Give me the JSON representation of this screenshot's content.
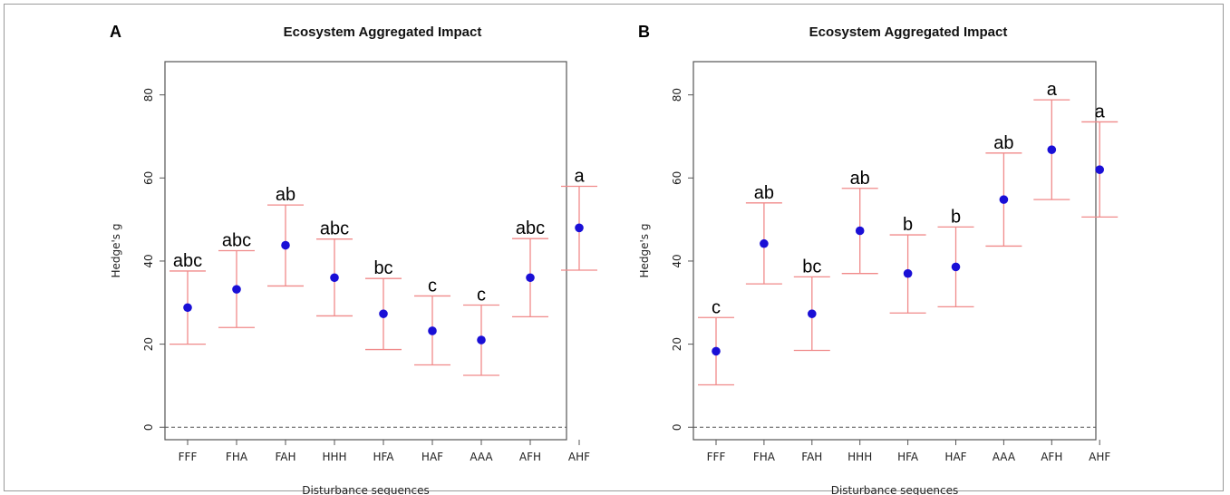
{
  "chart_data": [
    {
      "type": "scatter",
      "panel": "A",
      "title": "Ecosystem Aggregated Impact",
      "xlabel": "Disturbance sequences",
      "ylabel": "Hedge's g",
      "ylim": [
        -3,
        88
      ],
      "yticks": [
        0,
        20,
        40,
        60,
        80
      ],
      "grid": false,
      "reference_line": 0,
      "categories": [
        "FFF",
        "FHA",
        "FAH",
        "HHH",
        "HFA",
        "HAF",
        "AAA",
        "AFH",
        "AHF"
      ],
      "values": [
        28.8,
        33.2,
        43.8,
        36.0,
        27.3,
        23.2,
        21.0,
        36.0,
        48.0
      ],
      "lower": [
        20.0,
        24.0,
        34.0,
        26.8,
        18.7,
        15.0,
        12.5,
        26.6,
        37.8
      ],
      "upper": [
        37.6,
        42.5,
        53.5,
        45.3,
        35.8,
        31.6,
        29.4,
        45.4,
        58.0
      ],
      "letters": [
        "abc",
        "abc",
        "ab",
        "abc",
        "bc",
        "c",
        "c",
        "abc",
        "a"
      ],
      "colors": {
        "point": "#1a0fd6",
        "errorbar": "#f08a8a",
        "axis": "#555555",
        "refline": "#555555"
      }
    },
    {
      "type": "scatter",
      "panel": "B",
      "title": "Ecosystem Aggregated Impact",
      "xlabel": "Disturbance sequences",
      "ylabel": "Hedge's g",
      "ylim": [
        -3,
        88
      ],
      "yticks": [
        0,
        20,
        40,
        60,
        80
      ],
      "grid": false,
      "reference_line": 0,
      "categories": [
        "FFF",
        "FHA",
        "FAH",
        "HHH",
        "HFA",
        "HAF",
        "AAA",
        "AFH",
        "AHF"
      ],
      "values": [
        18.3,
        44.2,
        27.3,
        47.3,
        37.0,
        38.6,
        54.8,
        66.8,
        62.0
      ],
      "lower": [
        10.2,
        34.5,
        18.5,
        37.0,
        27.5,
        29.0,
        43.6,
        54.8,
        50.6
      ],
      "upper": [
        26.4,
        54.0,
        36.2,
        57.5,
        46.3,
        48.2,
        66.0,
        78.8,
        73.5
      ],
      "letters": [
        "c",
        "ab",
        "bc",
        "ab",
        "b",
        "b",
        "ab",
        "a",
        "a"
      ],
      "colors": {
        "point": "#1a0fd6",
        "errorbar": "#f08a8a",
        "axis": "#555555",
        "refline": "#555555"
      }
    }
  ]
}
